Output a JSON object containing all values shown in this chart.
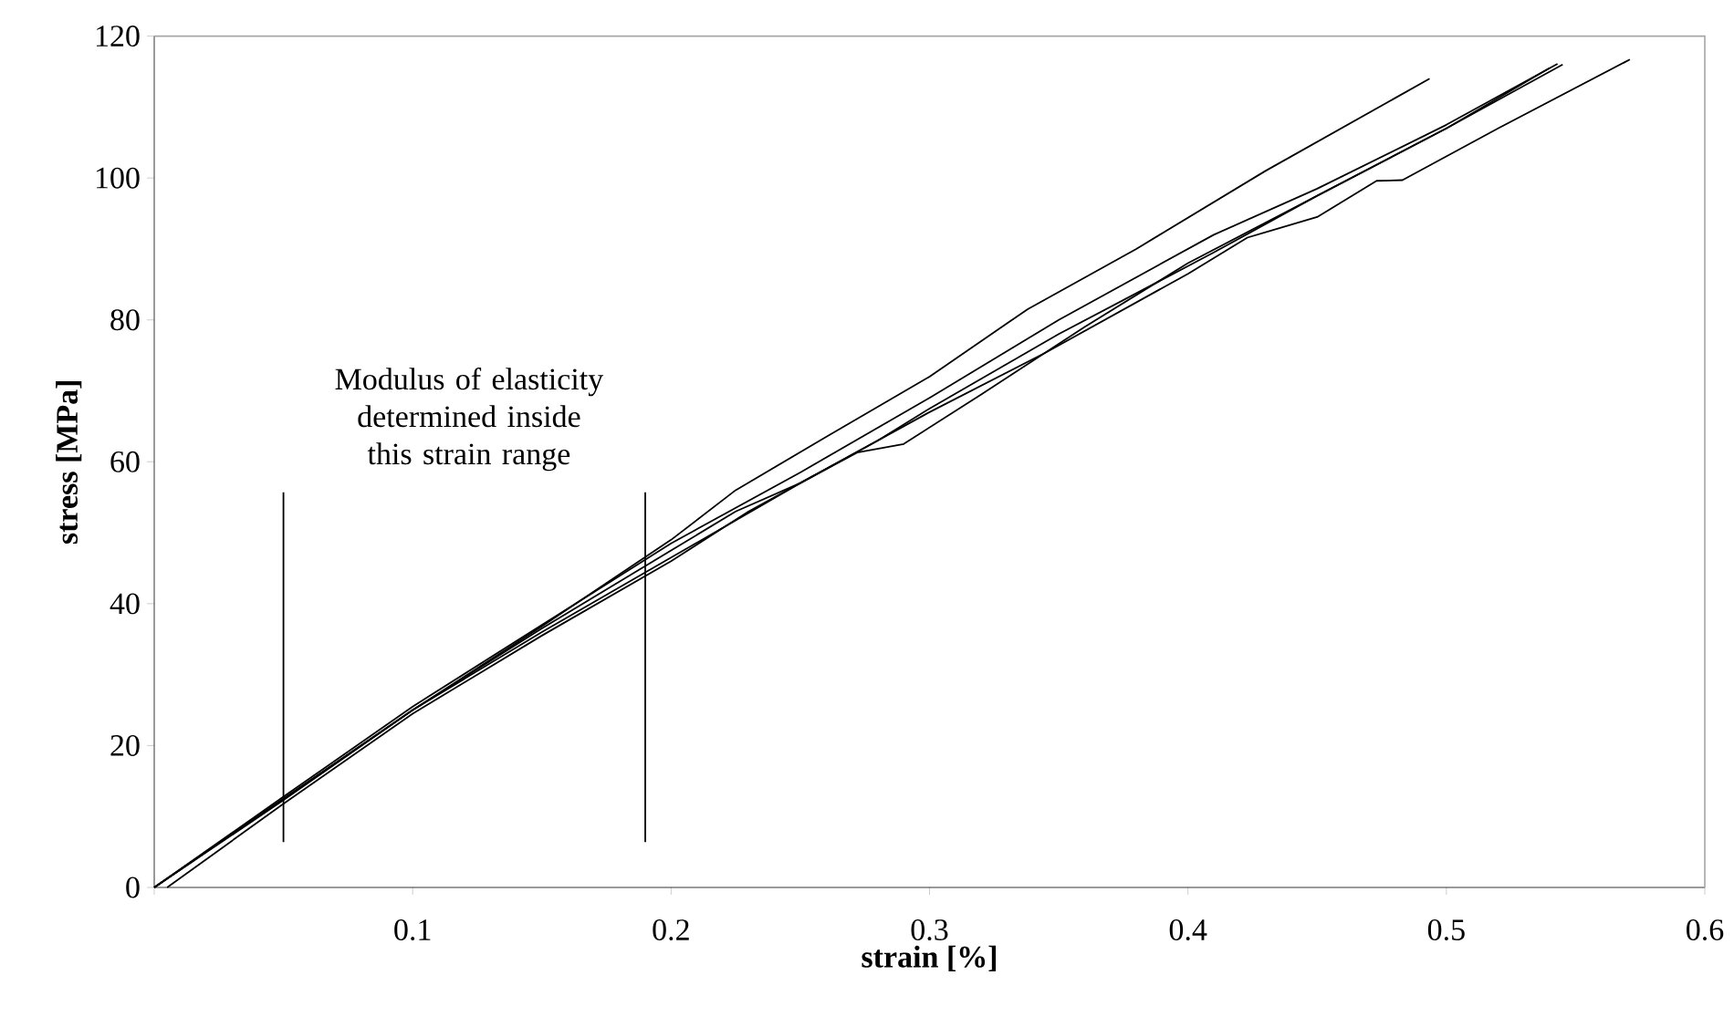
{
  "chart_data": {
    "type": "line",
    "xlabel": "strain [%]",
    "ylabel": "stress [MPa]",
    "xlim": [
      0,
      0.6
    ],
    "ylim": [
      0,
      120
    ],
    "xticks": [
      {
        "value": 0,
        "label": null
      },
      0.1,
      0.2,
      0.3,
      0.4,
      0.5,
      0.6
    ],
    "yticks": [
      0,
      20,
      40,
      60,
      80,
      100,
      120
    ],
    "annotations": [
      "Modulus of elasticity determined inside this strain range"
    ],
    "series": [
      {
        "color": "#000000",
        "x": [
          0,
          0.05,
          0.1,
          0.15,
          0.2,
          0.225,
          0.26,
          0.3,
          0.33,
          0.338,
          0.38,
          0.43,
          0.4935
        ],
        "values": [
          0,
          12.5,
          25,
          36.8,
          49,
          56,
          63.5,
          72,
          79.5,
          81.5,
          90,
          101,
          114
        ]
      },
      {
        "color": "#000000",
        "x": [
          0,
          0.05,
          0.1,
          0.15,
          0.2,
          0.25,
          0.3,
          0.35,
          0.41,
          0.45,
          0.5,
          0.543
        ],
        "values": [
          0,
          12.8,
          25.5,
          37,
          48.5,
          58.5,
          69,
          80,
          92,
          98.5,
          107.5,
          116.1
        ]
      },
      {
        "color": "#000000",
        "x": [
          0,
          0.05,
          0.1,
          0.15,
          0.2,
          0.25,
          0.28,
          0.3,
          0.35,
          0.41,
          0.45,
          0.5,
          0.545
        ],
        "values": [
          0,
          12.3,
          25,
          36,
          46.5,
          57,
          63,
          67.5,
          78,
          89.5,
          97.5,
          107,
          116
        ]
      },
      {
        "color": "#000000",
        "x": [
          0.005,
          0.05,
          0.1,
          0.15,
          0.2,
          0.23,
          0.26,
          0.3,
          0.345,
          0.4,
          0.423,
          0.45,
          0.473,
          0.483,
          0.52,
          0.571
        ],
        "values": [
          0,
          11.8,
          24.5,
          35.5,
          46,
          53,
          59,
          67,
          75.4,
          86.5,
          91.6,
          94.5,
          99.6,
          99.7,
          107,
          116.7
        ]
      },
      {
        "color": "#000000",
        "x": [
          0,
          0.05,
          0.1,
          0.15,
          0.2,
          0.225,
          0.25,
          0.272,
          0.29,
          0.32,
          0.36,
          0.4,
          0.45,
          0.5,
          0.54
        ],
        "values": [
          0,
          12.5,
          25,
          36.5,
          47.5,
          53,
          57,
          61.3,
          62.5,
          69.5,
          79,
          88,
          97.5,
          107,
          115.5
        ]
      },
      {
        "color": "#000000",
        "x": [
          0.05,
          0.05
        ],
        "values": [
          6.4,
          55.7
        ]
      },
      {
        "color": "#000000",
        "x": [
          0.19,
          0.19
        ],
        "values": [
          6.4,
          55.7
        ]
      }
    ]
  }
}
